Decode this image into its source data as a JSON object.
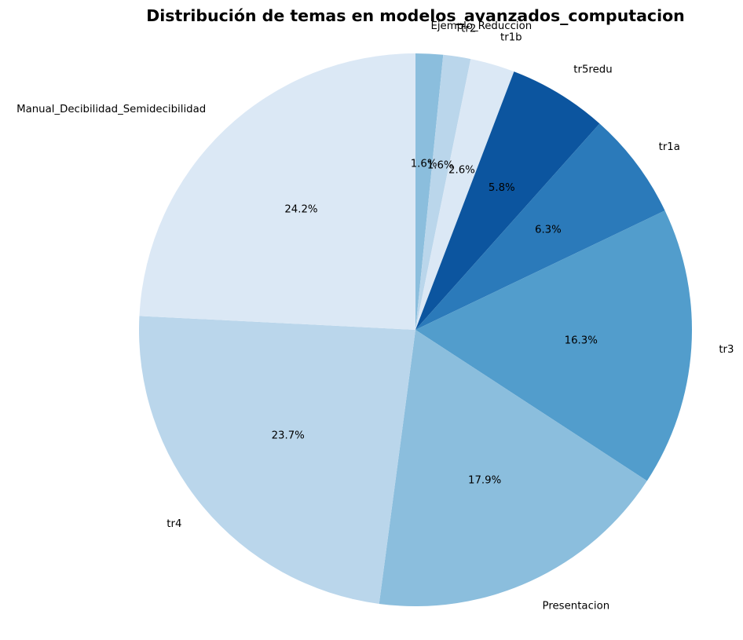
{
  "chart_data": {
    "type": "pie",
    "title": "Distribución de temas en modelos_avanzados_computacion",
    "start_angle_deg": 90,
    "direction": "clockwise",
    "legend": "none",
    "slices": [
      {
        "label": "Ejemplo_Reduccion",
        "pct_label": "1.6%",
        "value": 1.6,
        "color": "#8bbedd"
      },
      {
        "label": "tr2",
        "pct_label": "1.6%",
        "value": 1.6,
        "color": "#bad6eb"
      },
      {
        "label": "tr1b",
        "pct_label": "2.6%",
        "value": 2.6,
        "color": "#dbe8f5"
      },
      {
        "label": "tr5redu",
        "pct_label": "5.8%",
        "value": 5.8,
        "color": "#0c559f"
      },
      {
        "label": "tr1a",
        "pct_label": "6.3%",
        "value": 6.3,
        "color": "#2b7aba"
      },
      {
        "label": "tr3",
        "pct_label": "16.3%",
        "value": 16.3,
        "color": "#529dcc"
      },
      {
        "label": "Presentacion",
        "pct_label": "17.9%",
        "value": 17.9,
        "color": "#8bbedd"
      },
      {
        "label": "tr4",
        "pct_label": "23.7%",
        "value": 23.7,
        "color": "#bad6eb"
      },
      {
        "label": "Manual_Decibilidad_Semidecibilidad",
        "pct_label": "24.2%",
        "value": 24.2,
        "color": "#dbe8f5"
      }
    ]
  }
}
